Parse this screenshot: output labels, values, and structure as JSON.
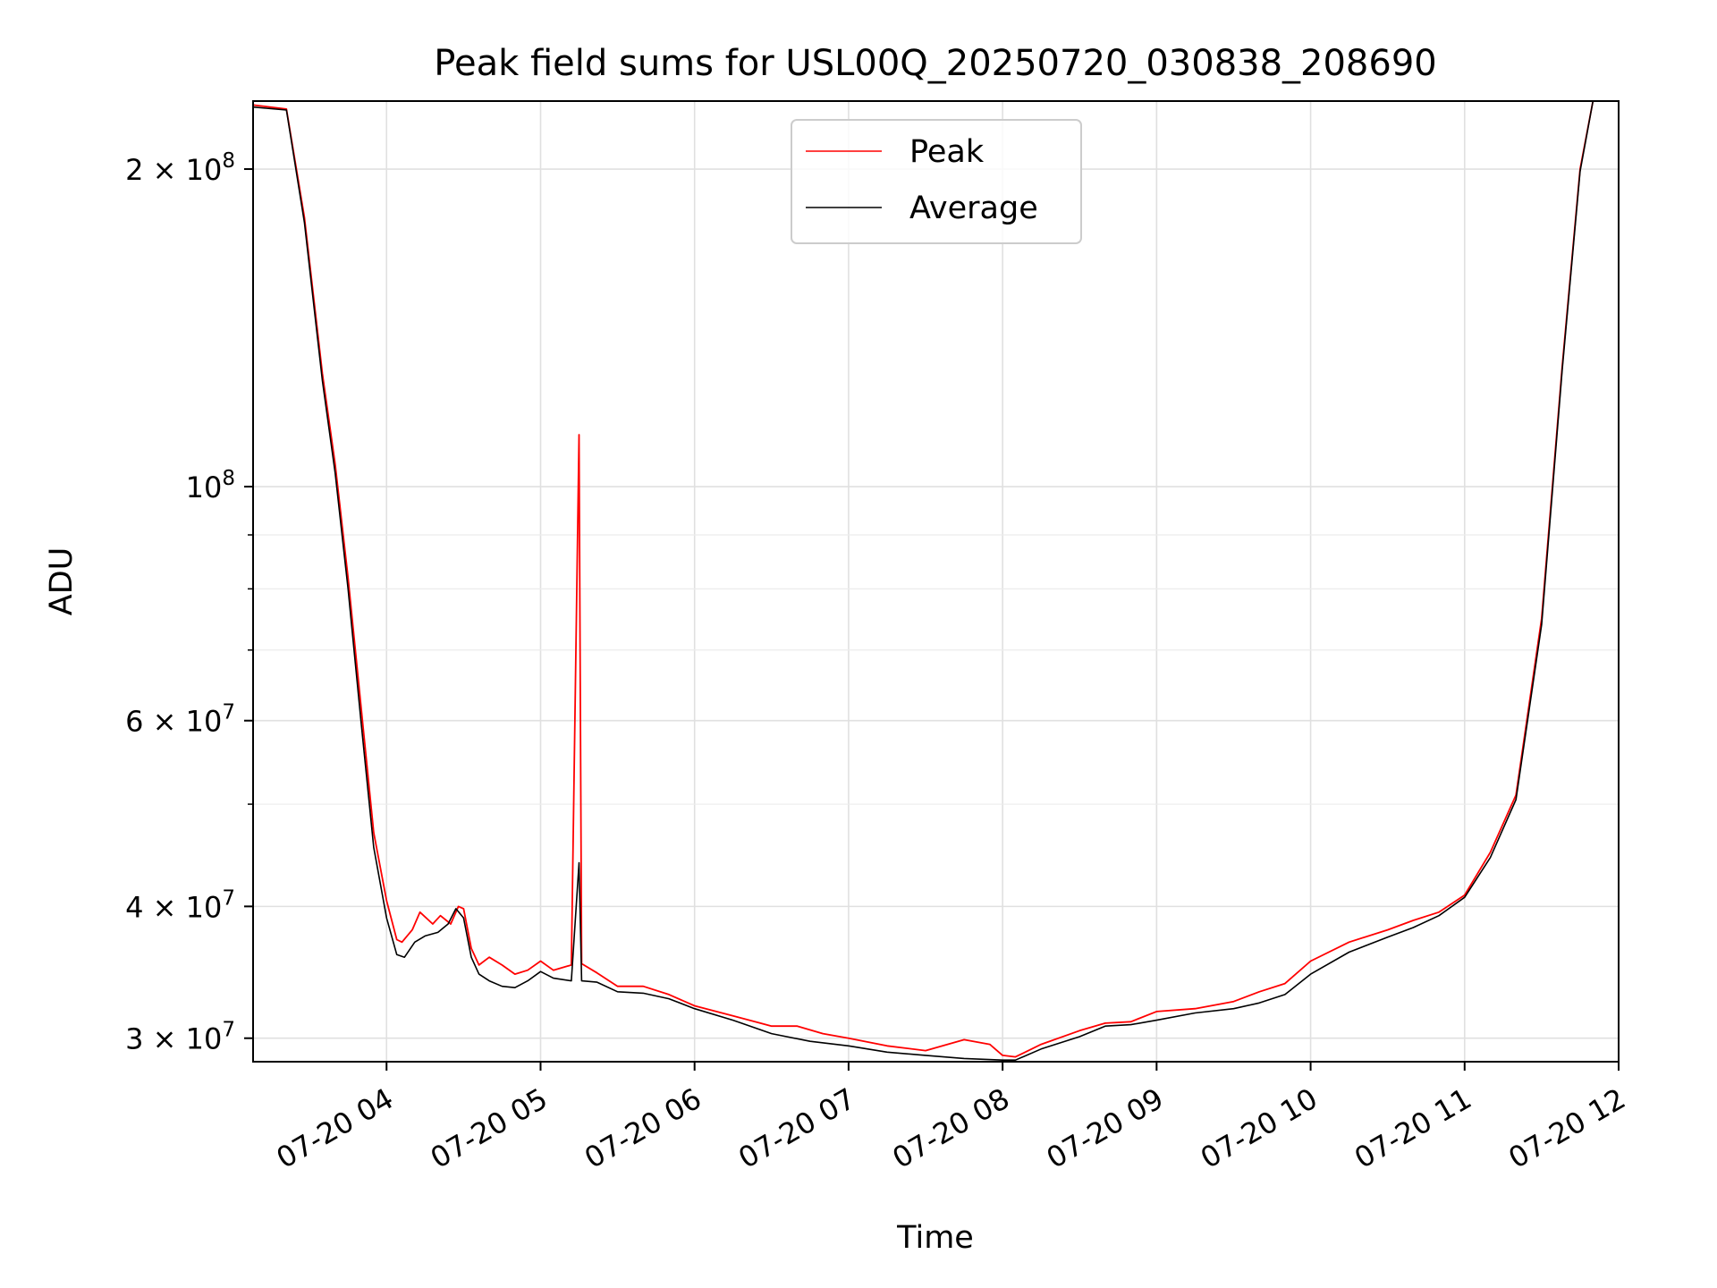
{
  "chart_data": {
    "type": "line",
    "title": "Peak field sums for USL00Q_20250720_030838_208690",
    "xlabel": "Time",
    "ylabel": "ADU",
    "yscale": "log",
    "ylim": [
      28500000,
      232000000
    ],
    "xlim": [
      "2025-07-20 03:08",
      "2025-07-20 12:00"
    ],
    "grid": true,
    "legend_position": "upper center",
    "x_ticks": [
      {
        "value": "2025-07-20 04:00",
        "label": "07-20 04"
      },
      {
        "value": "2025-07-20 05:00",
        "label": "07-20 05"
      },
      {
        "value": "2025-07-20 06:00",
        "label": "07-20 06"
      },
      {
        "value": "2025-07-20 07:00",
        "label": "07-20 07"
      },
      {
        "value": "2025-07-20 08:00",
        "label": "07-20 08"
      },
      {
        "value": "2025-07-20 09:00",
        "label": "07-20 09"
      },
      {
        "value": "2025-07-20 10:00",
        "label": "07-20 10"
      },
      {
        "value": "2025-07-20 11:00",
        "label": "07-20 11"
      },
      {
        "value": "2025-07-20 12:00",
        "label": "07-20 12"
      }
    ],
    "y_ticks": [
      {
        "value": 30000000,
        "base": "3 × 10",
        "exp": "7"
      },
      {
        "value": 40000000,
        "base": "4 × 10",
        "exp": "7"
      },
      {
        "value": 60000000,
        "base": "6 × 10",
        "exp": "7"
      },
      {
        "value": 100000000,
        "base": "10",
        "exp": "8"
      },
      {
        "value": 200000000,
        "base": "2 × 10",
        "exp": "8"
      }
    ],
    "y_minor_ticks": [
      50000000,
      70000000,
      80000000,
      90000000
    ],
    "series": [
      {
        "name": "Peak",
        "color": "#ff0000",
        "points": [
          [
            "03:08",
            230000000
          ],
          [
            "03:21",
            228000000
          ],
          [
            "03:28",
            180000000
          ],
          [
            "03:35",
            128000000
          ],
          [
            "03:40",
            105000000
          ],
          [
            "03:45",
            82000000
          ],
          [
            "03:50",
            62000000
          ],
          [
            "03:55",
            47000000
          ],
          [
            "04:00",
            40500000
          ],
          [
            "04:04",
            37200000
          ],
          [
            "04:06",
            37000000
          ],
          [
            "04:10",
            38000000
          ],
          [
            "04:13",
            39500000
          ],
          [
            "04:18",
            38500000
          ],
          [
            "04:21",
            39200000
          ],
          [
            "04:25",
            38500000
          ],
          [
            "04:28",
            40000000
          ],
          [
            "04:30",
            39800000
          ],
          [
            "04:33",
            36500000
          ],
          [
            "04:36",
            35200000
          ],
          [
            "04:40",
            35800000
          ],
          [
            "04:45",
            35200000
          ],
          [
            "04:50",
            34500000
          ],
          [
            "04:55",
            34800000
          ],
          [
            "05:00",
            35500000
          ],
          [
            "05:05",
            34800000
          ],
          [
            "05:12",
            35200000
          ],
          [
            "05:15",
            112000000
          ],
          [
            "05:16",
            35300000
          ],
          [
            "05:22",
            34600000
          ],
          [
            "05:30",
            33600000
          ],
          [
            "05:40",
            33600000
          ],
          [
            "05:50",
            33000000
          ],
          [
            "06:00",
            32200000
          ],
          [
            "06:15",
            31500000
          ],
          [
            "06:30",
            30800000
          ],
          [
            "06:40",
            30800000
          ],
          [
            "06:50",
            30300000
          ],
          [
            "07:00",
            30000000
          ],
          [
            "07:15",
            29500000
          ],
          [
            "07:30",
            29200000
          ],
          [
            "07:45",
            29900000
          ],
          [
            "07:55",
            29600000
          ],
          [
            "08:00",
            28900000
          ],
          [
            "08:05",
            28800000
          ],
          [
            "08:15",
            29600000
          ],
          [
            "08:30",
            30500000
          ],
          [
            "08:40",
            31000000
          ],
          [
            "08:50",
            31100000
          ],
          [
            "09:00",
            31800000
          ],
          [
            "09:15",
            32000000
          ],
          [
            "09:30",
            32500000
          ],
          [
            "09:40",
            33200000
          ],
          [
            "09:50",
            33800000
          ],
          [
            "10:00",
            35500000
          ],
          [
            "10:15",
            37000000
          ],
          [
            "10:30",
            38000000
          ],
          [
            "10:40",
            38800000
          ],
          [
            "10:50",
            39500000
          ],
          [
            "11:00",
            41000000
          ],
          [
            "11:10",
            45000000
          ],
          [
            "11:20",
            51000000
          ],
          [
            "11:30",
            75000000
          ],
          [
            "11:38",
            130000000
          ],
          [
            "11:45",
            200000000
          ],
          [
            "11:50",
            232000000
          ]
        ]
      },
      {
        "name": "Average",
        "color": "#000000",
        "points": [
          [
            "03:08",
            229000000
          ],
          [
            "03:21",
            227500000
          ],
          [
            "03:28",
            178000000
          ],
          [
            "03:35",
            126000000
          ],
          [
            "03:40",
            103000000
          ],
          [
            "03:45",
            80000000
          ],
          [
            "03:50",
            60000000
          ],
          [
            "03:55",
            45500000
          ],
          [
            "04:00",
            39000000
          ],
          [
            "04:04",
            36000000
          ],
          [
            "04:07",
            35800000
          ],
          [
            "04:11",
            37000000
          ],
          [
            "04:15",
            37500000
          ],
          [
            "04:20",
            37800000
          ],
          [
            "04:24",
            38500000
          ],
          [
            "04:27",
            39800000
          ],
          [
            "04:30",
            39000000
          ],
          [
            "04:33",
            35800000
          ],
          [
            "04:36",
            34500000
          ],
          [
            "04:40",
            34000000
          ],
          [
            "04:45",
            33600000
          ],
          [
            "04:50",
            33500000
          ],
          [
            "04:55",
            34000000
          ],
          [
            "05:00",
            34700000
          ],
          [
            "05:05",
            34200000
          ],
          [
            "05:12",
            34000000
          ],
          [
            "05:15",
            44000000
          ],
          [
            "05:16",
            34000000
          ],
          [
            "05:22",
            33900000
          ],
          [
            "05:30",
            33200000
          ],
          [
            "05:40",
            33100000
          ],
          [
            "05:50",
            32700000
          ],
          [
            "06:00",
            32000000
          ],
          [
            "06:15",
            31200000
          ],
          [
            "06:30",
            30300000
          ],
          [
            "06:45",
            29800000
          ],
          [
            "07:00",
            29500000
          ],
          [
            "07:15",
            29100000
          ],
          [
            "07:30",
            28900000
          ],
          [
            "07:45",
            28700000
          ],
          [
            "08:00",
            28600000
          ],
          [
            "08:05",
            28600000
          ],
          [
            "08:15",
            29300000
          ],
          [
            "08:30",
            30100000
          ],
          [
            "08:40",
            30800000
          ],
          [
            "08:50",
            30900000
          ],
          [
            "09:00",
            31200000
          ],
          [
            "09:15",
            31700000
          ],
          [
            "09:30",
            32000000
          ],
          [
            "09:40",
            32400000
          ],
          [
            "09:50",
            33000000
          ],
          [
            "10:00",
            34500000
          ],
          [
            "10:15",
            36200000
          ],
          [
            "10:30",
            37400000
          ],
          [
            "10:40",
            38200000
          ],
          [
            "10:50",
            39200000
          ],
          [
            "11:00",
            40800000
          ],
          [
            "11:10",
            44500000
          ],
          [
            "11:20",
            50500000
          ],
          [
            "11:30",
            74000000
          ],
          [
            "11:38",
            129000000
          ],
          [
            "11:45",
            199000000
          ],
          [
            "11:50",
            232000000
          ]
        ]
      }
    ]
  }
}
